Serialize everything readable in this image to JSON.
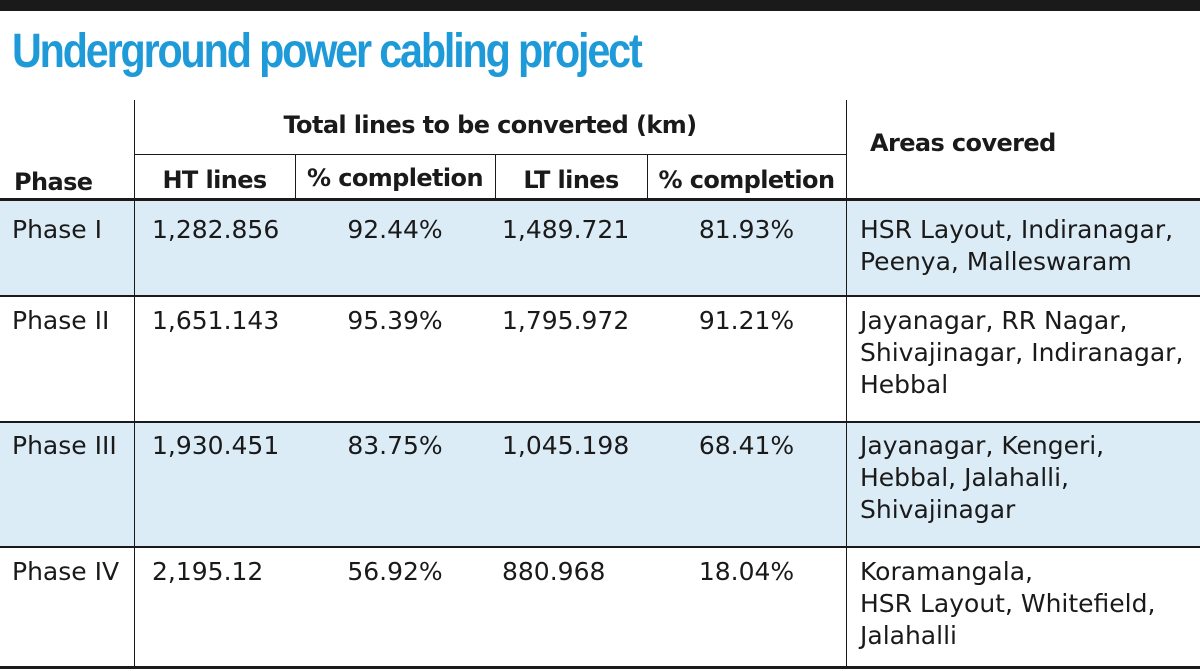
{
  "title": "Underground power cabling project",
  "header": {
    "group_label": "Total lines to be converted (km)",
    "phase": "Phase",
    "ht_lines": "HT lines",
    "ht_completion": "% completion",
    "lt_lines": "LT lines",
    "lt_completion": "% completion",
    "areas": "Areas covered"
  },
  "colors": {
    "title": "#1e9ad8",
    "row_shade": "#dcecf7",
    "rule": "#1a1a1a"
  },
  "rows": [
    {
      "phase": "Phase I",
      "ht_lines": "1,282.856",
      "ht_completion": "92.44%",
      "lt_lines": "1,489.721",
      "lt_completion": "81.93%",
      "areas": [
        "HSR Layout, Indiranagar,",
        "Peenya, Malleswaram"
      ]
    },
    {
      "phase": "Phase II",
      "ht_lines": "1,651.143",
      "ht_completion": "95.39%",
      "lt_lines": "1,795.972",
      "lt_completion": "91.21%",
      "areas": [
        "Jayanagar, RR Nagar,",
        "Shivajinagar, Indiranagar,",
        "Hebbal"
      ]
    },
    {
      "phase": "Phase III",
      "ht_lines": "1,930.451",
      "ht_completion": "83.75%",
      "lt_lines": "1,045.198",
      "lt_completion": "68.41%",
      "areas": [
        "Jayanagar, Kengeri,",
        "Hebbal, Jalahalli,",
        "Shivajinagar"
      ]
    },
    {
      "phase": "Phase IV",
      "ht_lines": "2,195.12",
      "ht_completion": "56.92%",
      "lt_lines": "880.968",
      "lt_completion": "18.04%",
      "areas": [
        "Koramangala,",
        "HSR Layout, Whitefield,",
        "Jalahalli"
      ]
    }
  ],
  "chart_data": {
    "type": "table",
    "title": "Underground power cabling project",
    "columns": [
      "Phase",
      "HT lines",
      "% completion",
      "LT lines",
      "% completion",
      "Areas covered"
    ],
    "column_group": "Total lines to be converted (km)",
    "rows": [
      [
        "Phase I",
        1282.856,
        92.44,
        1489.721,
        81.93,
        "HSR Layout, Indiranagar, Peenya, Malleswaram"
      ],
      [
        "Phase II",
        1651.143,
        95.39,
        1795.972,
        91.21,
        "Jayanagar, RR Nagar, Shivajinagar, Indiranagar, Hebbal"
      ],
      [
        "Phase III",
        1930.451,
        83.75,
        1045.198,
        68.41,
        "Jayanagar, Kengeri, Hebbal, Jalahalli, Shivajinagar"
      ],
      [
        "Phase IV",
        2195.12,
        56.92,
        880.968,
        18.04,
        "Koramangala, HSR Layout, Whitefield, Jalahalli"
      ]
    ]
  }
}
